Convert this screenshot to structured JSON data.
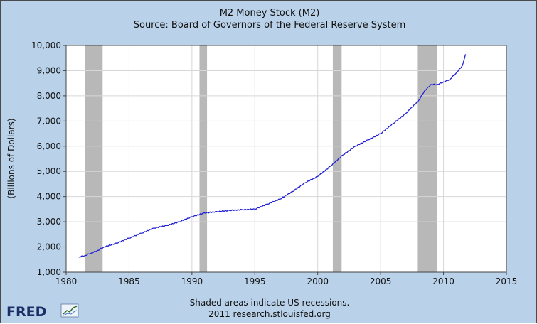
{
  "brand": {
    "logo_text": "FRED",
    "colors": {
      "background": "#b9d2ea",
      "plot_area": "#ffffff",
      "line": "#1f1fd6",
      "recession": "#b8b8b8",
      "grid": "#d7d7d7"
    }
  },
  "footer": {
    "line1": "Shaded areas indicate US recessions.",
    "line2": "2011 research.stlouisfed.org"
  },
  "chart_data": {
    "type": "line",
    "title": "M2 Money Stock (M2)",
    "subtitle": "Source: Board of Governors of the Federal Reserve System",
    "ylabel": "(Billions of Dollars)",
    "xlabel": "",
    "xlim": [
      1980,
      2015
    ],
    "ylim": [
      1000,
      10000
    ],
    "grid": true,
    "x_ticks": [
      1980,
      1985,
      1990,
      1995,
      2000,
      2005,
      2010,
      2015
    ],
    "x_tick_labels": [
      "1980",
      "1985",
      "1990",
      "1995",
      "2000",
      "2005",
      "2010",
      "2015"
    ],
    "y_ticks": [
      1000,
      2000,
      3000,
      4000,
      5000,
      6000,
      7000,
      8000,
      9000,
      10000
    ],
    "y_tick_labels": [
      "1,000",
      "2,000",
      "3,000",
      "4,000",
      "5,000",
      "6,000",
      "7,000",
      "8,000",
      "9,000",
      "10,000"
    ],
    "recessions": [
      [
        1981.5,
        1982.9
      ],
      [
        1990.6,
        1991.2
      ],
      [
        2001.2,
        2001.9
      ],
      [
        2007.9,
        2009.5
      ]
    ],
    "series": [
      {
        "x": [
          1981.0,
          1981.5,
          1982.0,
          1982.5,
          1983.0,
          1984.0,
          1985.0,
          1986.0,
          1987.0,
          1988.0,
          1989.0,
          1990.0,
          1991.0,
          1992.0,
          1993.0,
          1994.0,
          1995.0,
          1996.0,
          1997.0,
          1998.0,
          1999.0,
          2000.0,
          2001.0,
          2002.0,
          2003.0,
          2004.0,
          2005.0,
          2006.0,
          2007.0,
          2008.0,
          2008.5,
          2009.0,
          2009.5,
          2010.0,
          2010.5,
          2011.0,
          2011.5,
          2011.75
        ],
        "values": [
          1600,
          1660,
          1760,
          1860,
          2000,
          2150,
          2350,
          2550,
          2750,
          2850,
          3000,
          3200,
          3350,
          3400,
          3450,
          3480,
          3500,
          3700,
          3900,
          4200,
          4550,
          4800,
          5200,
          5650,
          6000,
          6250,
          6500,
          6900,
          7300,
          7800,
          8200,
          8450,
          8450,
          8550,
          8650,
          8900,
          9200,
          9650
        ]
      }
    ]
  }
}
